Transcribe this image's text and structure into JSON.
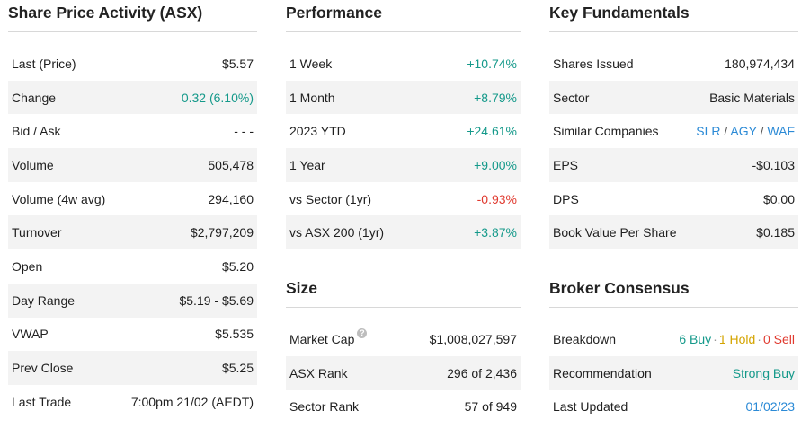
{
  "share_price": {
    "title": "Share Price Activity (ASX)",
    "rows": [
      {
        "label": "Last (Price)",
        "value": "$5.57"
      },
      {
        "label": "Change",
        "value": "0.32 (6.10%)"
      },
      {
        "label": "Bid / Ask",
        "value": "- - -"
      },
      {
        "label": "Volume",
        "value": "505,478"
      },
      {
        "label": "Volume (4w avg)",
        "value": "294,160"
      },
      {
        "label": "Turnover",
        "value": "$2,797,209"
      },
      {
        "label": "Open",
        "value": "$5.20"
      },
      {
        "label": "Day Range",
        "value": "$5.19 - $5.69"
      },
      {
        "label": "VWAP",
        "value": "$5.535"
      },
      {
        "label": "Prev Close",
        "value": "$5.25"
      },
      {
        "label": "Last Trade",
        "value": "7:00pm 21/02 (AEDT)"
      }
    ]
  },
  "performance": {
    "title": "Performance",
    "rows": [
      {
        "label": "1 Week",
        "value": "+10.74%"
      },
      {
        "label": "1 Month",
        "value": "+8.79%"
      },
      {
        "label": "2023 YTD",
        "value": "+24.61%"
      },
      {
        "label": "1 Year",
        "value": "+9.00%"
      },
      {
        "label": "vs Sector (1yr)",
        "value": "-0.93%"
      },
      {
        "label": "vs ASX 200 (1yr)",
        "value": "+3.87%"
      }
    ]
  },
  "size": {
    "title": "Size",
    "help_glyph": "?",
    "rows": [
      {
        "label": "Market Cap",
        "value": "$1,008,027,597"
      },
      {
        "label": "ASX Rank",
        "value": "296 of 2,436"
      },
      {
        "label": "Sector Rank",
        "value": "57 of 949"
      }
    ]
  },
  "fundamentals": {
    "title": "Key Fundamentals",
    "rows": [
      {
        "label": "Shares Issued",
        "value": "180,974,434"
      },
      {
        "label": "Sector",
        "value": "Basic Materials"
      },
      {
        "label": "Similar Companies",
        "value": ""
      },
      {
        "label": "EPS",
        "value": "-$0.103"
      },
      {
        "label": "DPS",
        "value": "$0.00"
      },
      {
        "label": "Book Value Per Share",
        "value": "$0.185"
      }
    ],
    "similar": [
      "SLR",
      "AGY",
      "WAF"
    ],
    "similar_sep": "/"
  },
  "broker": {
    "title": "Broker Consensus",
    "breakdown_label": "Breakdown",
    "buy": "6 Buy",
    "hold": "1 Hold",
    "sell": "0 Sell",
    "dot": "·",
    "recommendation_label": "Recommendation",
    "recommendation_value": "Strong Buy",
    "updated_label": "Last Updated",
    "updated_value": "01/02/23"
  },
  "colors": {
    "positive": "#14998a",
    "negative": "#e03a2f",
    "link": "#2b8ad6",
    "hold": "#d4a400"
  }
}
